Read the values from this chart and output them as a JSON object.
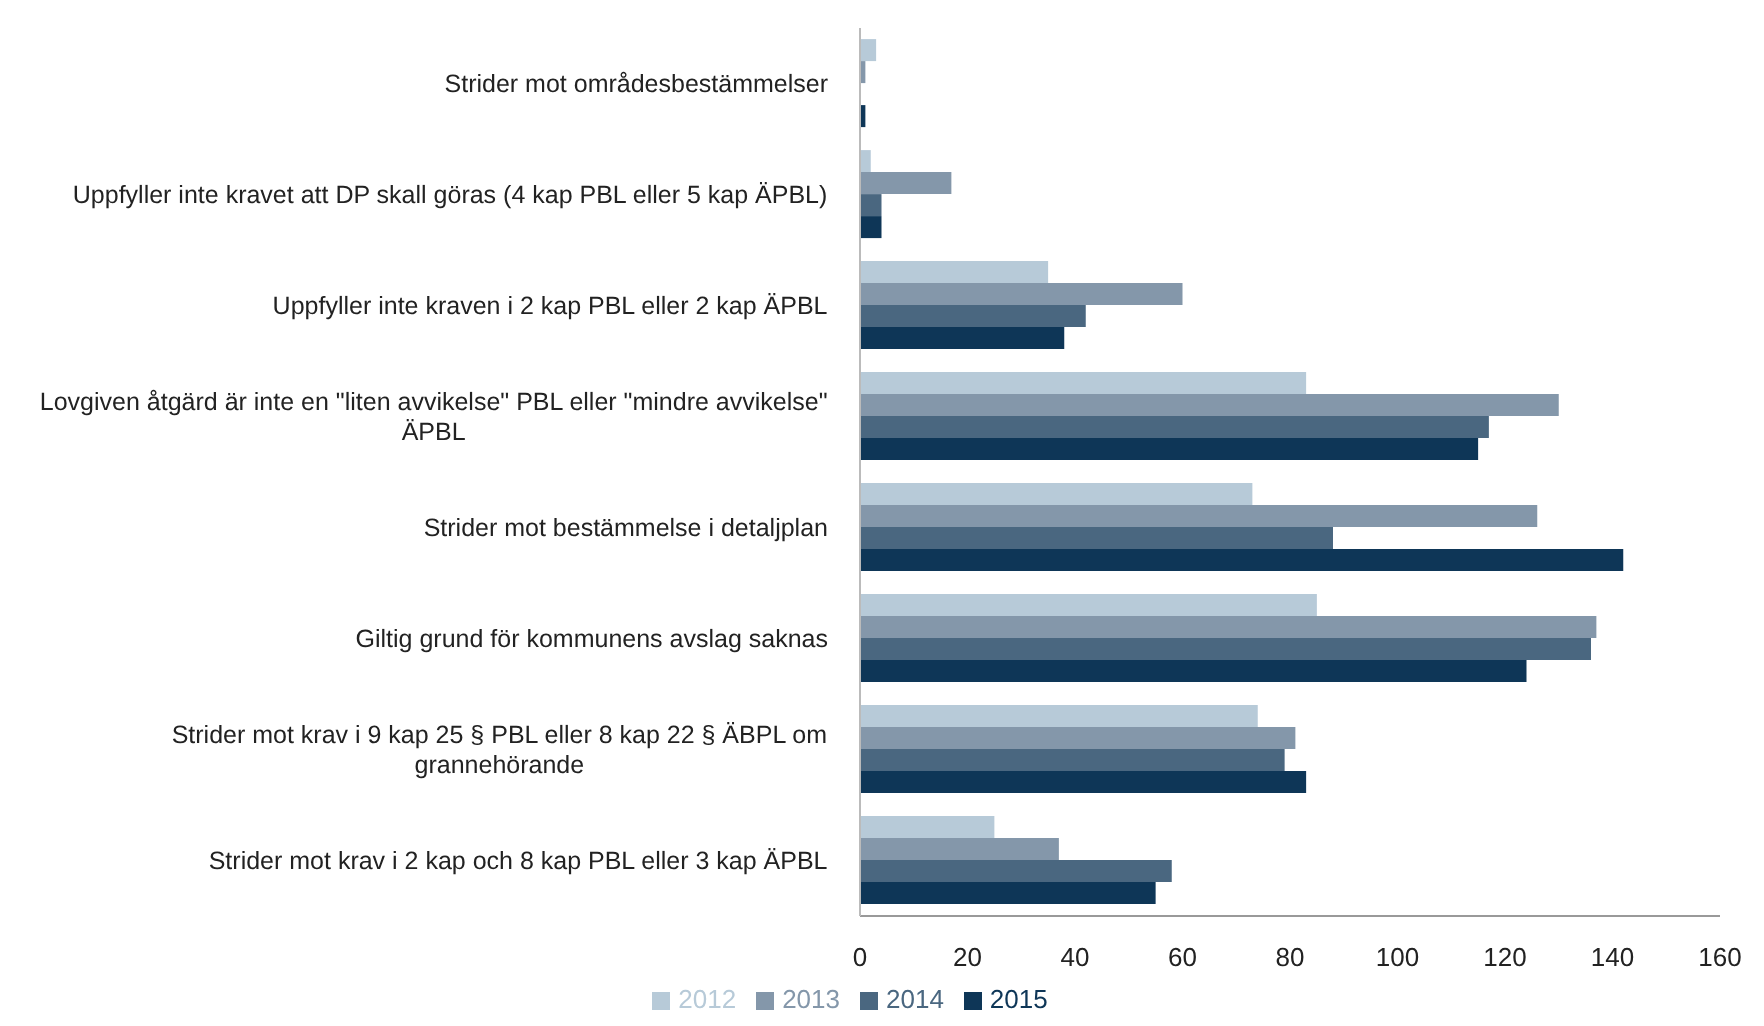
{
  "chart_data": {
    "type": "bar",
    "orientation": "horizontal",
    "categories": [
      "Strider mot områdesbestämmelser",
      "Uppfyller inte kravet att DP skall göras (4 kap PBL eller 5 kap ÄPBL)",
      "Uppfyller inte kraven i 2 kap PBL eller 2 kap ÄPBL",
      "Lovgiven åtgärd är inte en \"liten avvikelse\" PBL eller \"mindre avvikelse\" ÄPBL",
      "Strider mot bestämmelse i detaljplan",
      "Giltig grund för kommunens avslag saknas",
      "Strider mot krav i 9 kap 25 § PBL eller 8 kap 22 § ÄBPL om grannehörande",
      "Strider mot krav i 2 kap och 8 kap PBL eller 3 kap ÄPBL"
    ],
    "series": [
      {
        "name": "2012",
        "color": "#b7cad8",
        "values": [
          3,
          2,
          35,
          83,
          73,
          85,
          74,
          25
        ]
      },
      {
        "name": "2013",
        "color": "#8497aa",
        "values": [
          1,
          17,
          60,
          130,
          126,
          137,
          81,
          37
        ]
      },
      {
        "name": "2014",
        "color": "#4a6780",
        "values": [
          0,
          4,
          42,
          117,
          88,
          136,
          79,
          58
        ]
      },
      {
        "name": "2015",
        "color": "#0e3657",
        "values": [
          1,
          4,
          38,
          115,
          142,
          124,
          83,
          55
        ]
      }
    ],
    "xlim": [
      0,
      160
    ],
    "xticks": [
      0,
      20,
      40,
      60,
      80,
      100,
      120,
      140,
      160
    ],
    "grid": false,
    "legend": "bottom"
  }
}
